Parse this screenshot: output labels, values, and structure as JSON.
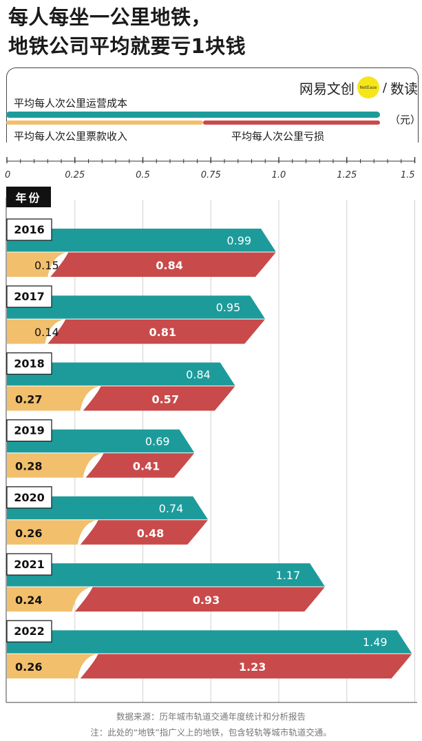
{
  "title": {
    "line1": "每人每坐一公里地铁，",
    "line2": "地铁公司平均就要亏1块钱"
  },
  "brand": {
    "name": "网易文创",
    "badge": "NetEase",
    "sep": "/",
    "sub": "数读",
    "badge_color": "#f5e619"
  },
  "legend": {
    "cost": "平均每人次公里运营成本",
    "revenue": "平均每人次公里票款收入",
    "loss": "平均每人次公里亏损",
    "unit": "（元）"
  },
  "axis": {
    "ticks": [
      "0",
      "0.25",
      "0.5",
      "0.75",
      "1.0",
      "1.25",
      "1.5"
    ]
  },
  "years_label": "年份",
  "colors": {
    "cost": "#1d9b9b",
    "revenue": "#f2bf6c",
    "loss": "#c94a4a",
    "outline": "#222222"
  },
  "chart_data": {
    "type": "bar",
    "title": "每人每坐一公里地铁，地铁公司平均就要亏1块钱",
    "xlabel": "（元）",
    "ylabel": "年份",
    "xlim": [
      0,
      1.5
    ],
    "categories": [
      "2016",
      "2017",
      "2018",
      "2019",
      "2020",
      "2021",
      "2022"
    ],
    "series": [
      {
        "name": "平均每人次公里运营成本",
        "values": [
          0.99,
          0.95,
          0.84,
          0.69,
          0.74,
          1.17,
          1.49
        ]
      },
      {
        "name": "平均每人次公里票款收入",
        "values": [
          0.15,
          0.14,
          0.27,
          0.28,
          0.26,
          0.24,
          0.26
        ]
      },
      {
        "name": "平均每人次公里亏损",
        "values": [
          0.84,
          0.81,
          0.57,
          0.41,
          0.48,
          0.93,
          1.23
        ]
      }
    ]
  },
  "footer": {
    "source": "数据来源：历年城市轨道交通年度统计和分析报告",
    "note": "注：此处的“地铁”指广义上的地铁，包含轻轨等城市轨道交通。"
  }
}
